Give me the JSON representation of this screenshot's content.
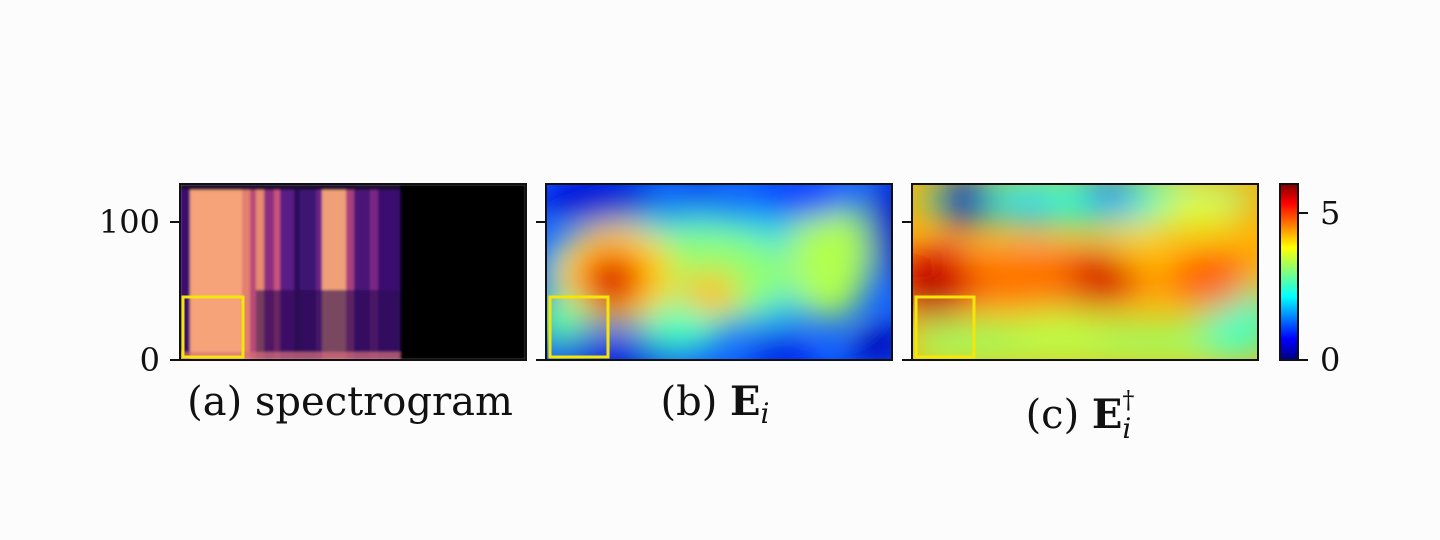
{
  "chart_data": {
    "type": "heatmap",
    "panels": [
      {
        "id": "a",
        "caption_prefix": "(a)",
        "caption_text": "spectrogram",
        "colormap": "magma",
        "yticks": [
          0,
          100
        ],
        "ylim": [
          0,
          128
        ],
        "highlight_box": "lower-left",
        "highlight_color": "#f5e60a"
      },
      {
        "id": "b",
        "caption_prefix": "(b)",
        "caption_symbol": "E",
        "caption_subscript": "i",
        "caption_superscript": "",
        "colormap": "jet",
        "highlight_box": "lower-left",
        "highlight_color": "#f5e60a"
      },
      {
        "id": "c",
        "caption_prefix": "(c)",
        "caption_symbol": "E",
        "caption_subscript": "i",
        "caption_superscript": "†",
        "colormap": "jet",
        "highlight_box": "lower-left",
        "highlight_color": "#f5e60a"
      }
    ],
    "colorbar": {
      "colormap": "jet",
      "range": [
        0,
        6
      ],
      "ticks": [
        0,
        5
      ],
      "tick_labels": [
        "0",
        "5"
      ]
    }
  }
}
